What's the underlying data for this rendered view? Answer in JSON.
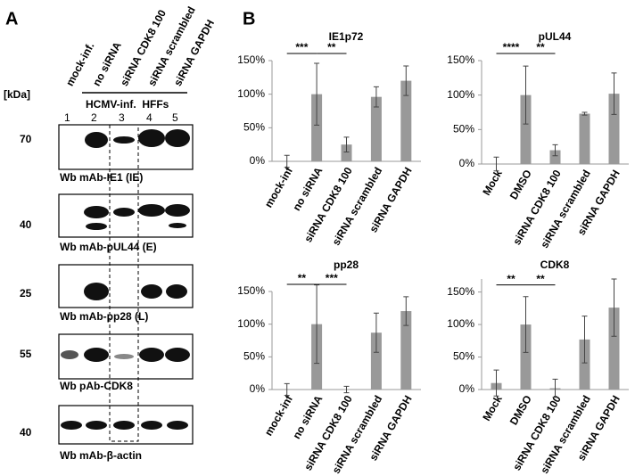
{
  "panel_a": {
    "label": "A",
    "kda_label": "[kDa]",
    "lanes": [
      "mock-inf.",
      "no siRNA",
      "siRNA CDK8 100",
      "siRNA scrambled",
      "siRNA GAPDH"
    ],
    "group_label": "HCMV-inf.  HFFs",
    "lane_numbers": [
      1,
      2,
      3,
      4,
      5
    ],
    "blots": [
      {
        "kda": "70",
        "caption": "Wb mAb-IE1 (IE)"
      },
      {
        "kda": "40",
        "caption": "Wb mAb-pUL44 (E)"
      },
      {
        "kda": "25",
        "caption": "Wb mAb-pp28 (L)"
      },
      {
        "kda": "55",
        "caption": "Wb pAb-CDK8"
      },
      {
        "kda": "40",
        "caption": "Wb mAb-β-actin"
      }
    ]
  },
  "panel_b_label": "B",
  "chart_data": [
    {
      "type": "bar",
      "title": "IE1p72",
      "categories": [
        "mock-inf",
        "no siRNA",
        "siRNA CDK8 100",
        "siRNA scrambled",
        "siRNA GAPDH"
      ],
      "values": [
        0,
        100,
        25,
        96,
        120
      ],
      "errors": [
        9,
        46,
        11,
        15,
        22
      ],
      "color": "#999999",
      "ylim": [
        0,
        150
      ],
      "yticks": [
        {
          "value": 0,
          "label": "0%"
        },
        {
          "value": 50,
          "label": "50%"
        },
        {
          "value": 100,
          "label": "100%"
        },
        {
          "value": 150,
          "label": "150%"
        }
      ],
      "annotations": [
        "***",
        "**"
      ]
    },
    {
      "type": "bar",
      "title": "pUL44",
      "categories": [
        "Mock",
        "DMSO",
        "siRNA CDK8 100",
        "siRNA scrambled",
        "siRNA GAPDH"
      ],
      "values": [
        0,
        100,
        20,
        73,
        102
      ],
      "errors": [
        10,
        42,
        8,
        2,
        30
      ],
      "color": "#999999",
      "ylim": [
        0,
        150
      ],
      "yticks": [
        {
          "value": 0,
          "label": "0%"
        },
        {
          "value": 50,
          "label": "50%"
        },
        {
          "value": 100,
          "label": "100%"
        },
        {
          "value": 150,
          "label": "150%"
        }
      ],
      "annotations": [
        "****",
        "**"
      ]
    },
    {
      "type": "bar",
      "title": "pp28",
      "categories": [
        "mock-inf",
        "no siRNA",
        "siRNA CDK8 100",
        "siRNA scrambled",
        "siRNA GAPDH"
      ],
      "values": [
        0,
        100,
        0,
        87,
        120
      ],
      "errors": [
        9,
        60,
        5,
        30,
        22
      ],
      "color": "#999999",
      "ylim": [
        0,
        150
      ],
      "yticks": [
        {
          "value": 0,
          "label": "0%"
        },
        {
          "value": 50,
          "label": "50%"
        },
        {
          "value": 100,
          "label": "100%"
        },
        {
          "value": 150,
          "label": "150%"
        }
      ],
      "annotations": [
        "**",
        "***"
      ]
    },
    {
      "type": "bar",
      "title": "CDK8",
      "categories": [
        "Mock",
        "DMSO",
        "siRNA CDK8 100",
        "siRNA scrambled",
        "siRNA GAPDH"
      ],
      "values": [
        10,
        100,
        2,
        77,
        126
      ],
      "errors": [
        20,
        43,
        14,
        36,
        44
      ],
      "color": "#999999",
      "ylim": [
        0,
        170
      ],
      "yticks": [
        {
          "value": 0,
          "label": "0%"
        },
        {
          "value": 50,
          "label": "50%"
        },
        {
          "value": 100,
          "label": "100%"
        },
        {
          "value": 150,
          "label": "150%"
        }
      ],
      "annotations": [
        "**",
        "**"
      ]
    }
  ]
}
